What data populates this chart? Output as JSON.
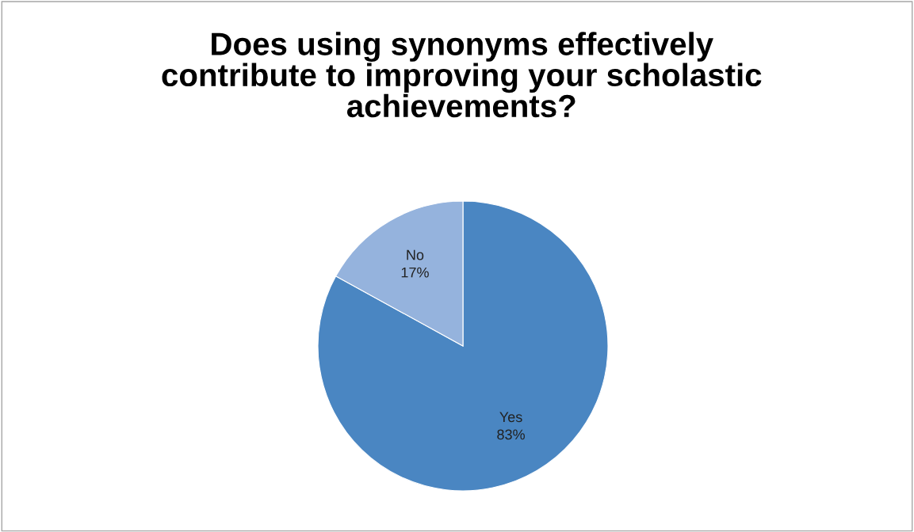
{
  "chart_data": {
    "type": "pie",
    "title": "Does using synonyms effectively\ncontribute to improving your scholastic\nachievements?",
    "categories": [
      "Yes",
      "No"
    ],
    "values": [
      83,
      17
    ],
    "value_labels": [
      "83%",
      "17%"
    ],
    "colors": [
      "#4a86c2",
      "#95b3dd"
    ],
    "legend": false
  }
}
